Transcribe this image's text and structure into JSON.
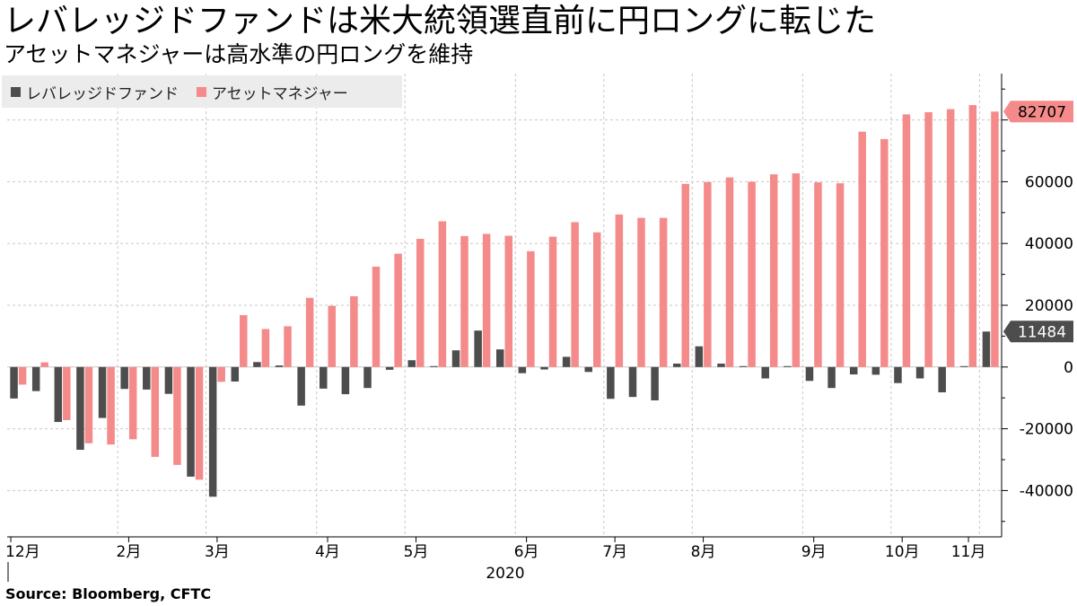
{
  "title": "レバレッジドファンドは米大統領選直前に円ロングに転じた",
  "subtitle": "アセットマネジャーは高水準の円ロングを維持",
  "source": "Source:  Bloomberg, CFTC",
  "colors": {
    "leveraged": "#4d4d4d",
    "asset": "#f58a8a",
    "asset_callout": "#f58a8a",
    "leveraged_callout": "#4d4d4d",
    "grid": "#c8c8c8",
    "legend_bg": "#ececec"
  },
  "chart_data": {
    "type": "bar",
    "series": [
      {
        "name": "レバレッジドファンド",
        "values": [
          -10200,
          -7800,
          -17800,
          -26800,
          -16500,
          -7100,
          -7300,
          -8700,
          -35500,
          -42000,
          -4700,
          1600,
          500,
          -12500,
          -7000,
          -8800,
          -6800,
          -900,
          2200,
          300,
          5400,
          11800,
          5700,
          -2000,
          -800,
          3300,
          -1600,
          -10300,
          -9700,
          -10800,
          1100,
          6700,
          1100,
          300,
          -3700,
          300,
          -4500,
          -6800,
          -2400,
          -2500,
          -5200,
          -3700,
          -8200,
          300,
          11484
        ],
        "callout": "11484"
      },
      {
        "name": "アセットマネジャー",
        "values": [
          -5700,
          1500,
          -17200,
          -24700,
          -25100,
          -23400,
          -29100,
          -31700,
          -36500,
          -4800,
          16800,
          12300,
          13200,
          22400,
          19800,
          22900,
          32500,
          36700,
          41500,
          47200,
          42400,
          43100,
          42500,
          37500,
          42200,
          46900,
          43600,
          49400,
          48300,
          48300,
          59300,
          59900,
          61400,
          60000,
          62400,
          62700,
          59800,
          59500,
          76200,
          73800,
          81800,
          82500,
          83500,
          84800,
          82707
        ],
        "callout": "82707"
      }
    ],
    "x_tick_labels": [
      "12月",
      "2月",
      "3月",
      "4月",
      "5月",
      "6月",
      "7月",
      "8月",
      "9月",
      "10月",
      "11月"
    ],
    "x_year_label": "2020",
    "y_ticks": [
      -40000,
      -20000,
      0,
      20000,
      40000,
      60000
    ],
    "ylim": [
      -55000,
      95000
    ],
    "grid": true,
    "legend_position": "top-left"
  }
}
